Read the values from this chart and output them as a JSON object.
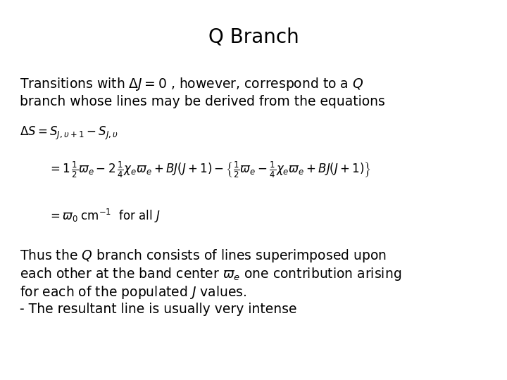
{
  "title": "Q Branch",
  "title_fontsize": 20,
  "background_color": "#ffffff",
  "text_color": "#000000",
  "content": {
    "line1_text": "Transitions with $\\Delta J = 0$ , however, correspond to a $Q$",
    "line2_text": "branch whose lines may be derived from the equations",
    "eq1": "$\\Delta S = S_{J,\\upsilon+1} - S_{J,\\upsilon}$",
    "eq3": "$= \\varpi_0 \\;\\mathrm{cm}^{-1}$  for all $J$",
    "para1": "Thus the $Q$ branch consists of lines superimposed upon",
    "para2": "each other at the band center $\\varpi_e$ one contribution arising",
    "para3": "for each of the populated $J$ values.",
    "para4": "- The resultant line is usually very intense"
  },
  "fontsize_body": 13.5,
  "fontsize_eq": 12,
  "fontsize_title": 20
}
